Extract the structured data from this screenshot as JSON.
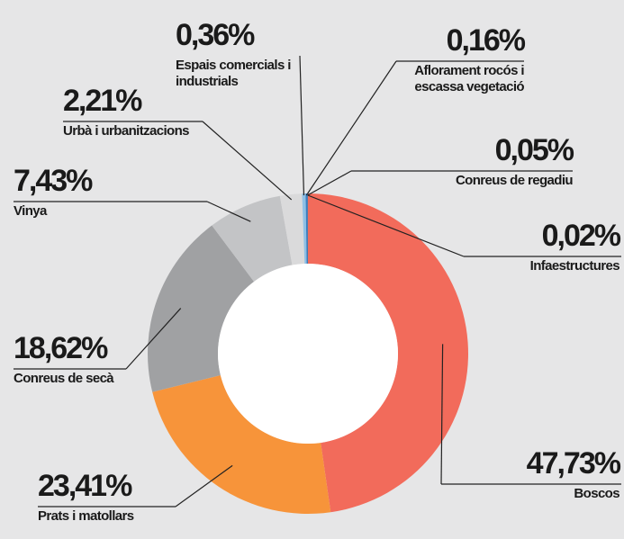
{
  "chart_data": {
    "type": "donut",
    "categories": [
      "Boscos",
      "Prats i matollars",
      "Conreus de secà",
      "Vinya",
      "Urbà i urbanitzacions",
      "Espais comercials i industrials",
      "Aflorament rocós i escassa vegetació",
      "Conreus de regadiu",
      "Infaestructures"
    ],
    "values": [
      47.73,
      23.41,
      18.62,
      7.43,
      2.21,
      0.36,
      0.16,
      0.05,
      0.02
    ],
    "value_labels": [
      "47,73%",
      "23,41%",
      "18,62%",
      "7,43%",
      "2,21%",
      "0,36%",
      "0,16%",
      "0,05%",
      "0,02%"
    ],
    "colors": [
      "#f26b5b",
      "#f7943a",
      "#a0a1a3",
      "#c3c4c6",
      "#dadadb",
      "#8fc0e6",
      "#3a7fc1",
      "#2a5f9e",
      "#1d3f73"
    ]
  }
}
